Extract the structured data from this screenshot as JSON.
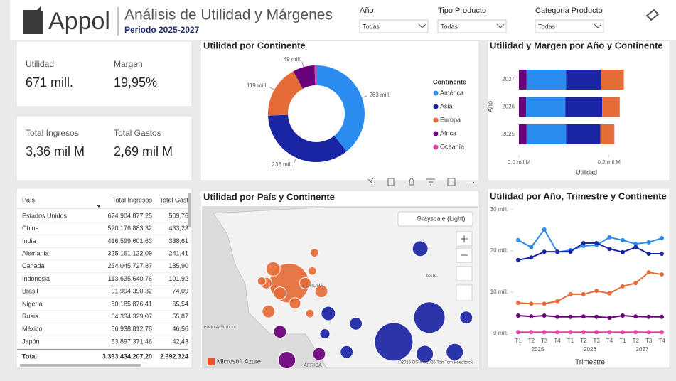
{
  "header": {
    "logo": "Appol",
    "title": "Análisis de Utilidad y Márgenes",
    "subtitle": "Periodo 2025-2027"
  },
  "filters": [
    {
      "label": "Año",
      "value": "Todas"
    },
    {
      "label": "Tipo Producto",
      "value": "Todas"
    },
    {
      "label": "Categoria Producto",
      "value": "Todas"
    }
  ],
  "kpis": [
    {
      "label": "Utilidad",
      "value": "671 mill."
    },
    {
      "label": "Margen",
      "value": "19,95%"
    },
    {
      "label": "Total Ingresos",
      "value": "3,36 mil M"
    },
    {
      "label": "Total Gastos",
      "value": "2,69 mil M"
    }
  ],
  "table": {
    "columns": [
      "País",
      "Total Ingresos",
      "Total Gast"
    ],
    "rows": [
      [
        "Estados Unidos",
        "674.904.877,25",
        "509,76"
      ],
      [
        "China",
        "520.176.883,32",
        "433,23"
      ],
      [
        "India",
        "416.599.601,63",
        "338,61"
      ],
      [
        "Alemania",
        "325.161.122,09",
        "241,41"
      ],
      [
        "Canadá",
        "234.045.727,87",
        "185,90"
      ],
      [
        "Indonesia",
        "113.635.640,76",
        "101,92"
      ],
      [
        "Brasil",
        "91.994.390,32",
        "74,09"
      ],
      [
        "Nigeria",
        "80.185.876,41",
        "65,54"
      ],
      [
        "Rusia",
        "64.334.329,07",
        "55,87"
      ],
      [
        "México",
        "56.938.812,78",
        "46,56"
      ],
      [
        "Japón",
        "53.897.371,46",
        "42,43"
      ]
    ],
    "total": [
      "Total",
      "3.363.434.207,20",
      "2.692.324"
    ]
  },
  "chart_data": [
    {
      "type": "donut",
      "title": "Utilidad por Continente",
      "legend_title": "Continente",
      "categories": [
        "América",
        "Asia",
        "Europa",
        "África",
        "Oceanía"
      ],
      "values": [
        263,
        236,
        119,
        49,
        4
      ],
      "value_labels": [
        "263 mill.",
        "236 mill.",
        "119 mill.",
        "49 mill.",
        null
      ],
      "colors": [
        "#2b8cf0",
        "#1a25a3",
        "#e66c37",
        "#6b007b",
        "#e044a7"
      ]
    },
    {
      "type": "stacked_bar_h",
      "title": "Utilidad y Margen por Año y Continente",
      "ylabel": "Año",
      "xlabel": "Utilidad",
      "categories": [
        "2027",
        "2026",
        "2025"
      ],
      "series": [
        {
          "color": "#6b007b",
          "values": [
            0.017,
            0.016,
            0.017
          ]
        },
        {
          "color": "#2b8cf0",
          "values": [
            0.088,
            0.087,
            0.088
          ]
        },
        {
          "color": "#1a25a3",
          "values": [
            0.077,
            0.082,
            0.076
          ]
        },
        {
          "color": "#e66c37",
          "values": [
            0.05,
            0.038,
            0.03
          ]
        },
        {
          "color": "#e044a7",
          "values": [
            0.001,
            0.001,
            0.001
          ]
        }
      ],
      "xlim": [
        0,
        0.27
      ],
      "xticks": [
        {
          "value": 0,
          "label": "0.0 mil M"
        },
        {
          "value": 0.2,
          "label": "0.2 mil M"
        }
      ]
    },
    {
      "type": "bubble_map",
      "title": "Utilidad por País y Continente",
      "style": "Grayscale (Light)",
      "region_labels": [
        "EUROPA",
        "ASIA",
        "ÁFRICA",
        "Océano Atlántico"
      ],
      "attribution": "Microsoft Azure",
      "copyright": "©2025 OSM ©2025 TomTom Feedback",
      "lonlim": [
        -30,
        90
      ],
      "latlim": [
        0,
        80
      ],
      "points": [
        {
          "lon": 8,
          "lat": 42,
          "value": 31,
          "color": "#e66c37"
        },
        {
          "lon": -2,
          "lat": 42,
          "value": 2.6,
          "color": "#e66c37"
        },
        {
          "lon": 1,
          "lat": 49,
          "value": 4,
          "color": "#e66c37"
        },
        {
          "lon": 4,
          "lat": 37,
          "value": 3.2,
          "color": "#e66c37"
        },
        {
          "lon": 10.5,
          "lat": 32,
          "value": 2.6,
          "color": "#e66c37"
        },
        {
          "lon": 22,
          "lat": 38,
          "value": 3.2,
          "color": "#e66c37"
        },
        {
          "lon": -1,
          "lat": 28,
          "value": 3.2,
          "color": "#e66c37"
        },
        {
          "lon": 18,
          "lat": 48,
          "value": 1.4,
          "color": "#e66c37"
        },
        {
          "lon": 17,
          "lat": 27,
          "value": 1.4,
          "color": "#e66c37"
        },
        {
          "lon": -4,
          "lat": 43,
          "value": 1.4,
          "color": "#e66c37"
        },
        {
          "lon": 15,
          "lat": 42,
          "value": 2.6,
          "color": "#e66c37"
        },
        {
          "lon": 19,
          "lat": 57,
          "value": 1.4,
          "color": "#e66c37"
        },
        {
          "lon": 65,
          "lat": 59,
          "value": 4.8,
          "color": "#1a25a3"
        },
        {
          "lon": 69,
          "lat": 25,
          "value": 19.4,
          "color": "#1a25a3"
        },
        {
          "lon": 53.5,
          "lat": 13,
          "value": 29,
          "color": "#1a25a3"
        },
        {
          "lon": 25,
          "lat": 27,
          "value": 4,
          "color": "#1a25a3"
        },
        {
          "lon": 37,
          "lat": 22,
          "value": 3.2,
          "color": "#1a25a3"
        },
        {
          "lon": 67,
          "lat": 7,
          "value": 5.8,
          "color": "#1a25a3"
        },
        {
          "lon": 80,
          "lat": 8,
          "value": 5.8,
          "color": "#1a25a3"
        },
        {
          "lon": 85,
          "lat": 25,
          "value": 3.2,
          "color": "#1a25a3"
        },
        {
          "lon": 33,
          "lat": 8,
          "value": 3.2,
          "color": "#1a25a3"
        },
        {
          "lon": 23.5,
          "lat": 17,
          "value": 2,
          "color": "#1a25a3"
        },
        {
          "lon": 4,
          "lat": 18,
          "value": 3.2,
          "color": "#6b007b"
        },
        {
          "lon": 7,
          "lat": 4,
          "value": 5.8,
          "color": "#6b007b"
        },
        {
          "lon": 21,
          "lat": 7,
          "value": 3.2,
          "color": "#6b007b"
        }
      ]
    },
    {
      "type": "line",
      "title": "Utilidad por Año, Trimestre y Continente",
      "xlabel": "Trimestre",
      "categories": [
        "T1",
        "T2",
        "T3",
        "T4",
        "T1",
        "T2",
        "T3",
        "T4",
        "T1",
        "T2",
        "T3",
        "T4"
      ],
      "groups": [
        "2025",
        "2026",
        "2027"
      ],
      "ylim": [
        0,
        30
      ],
      "yticks": [
        {
          "value": 0,
          "label": "0 mill."
        },
        {
          "value": 10,
          "label": "10 mill."
        },
        {
          "value": 20,
          "label": "20 mill."
        },
        {
          "value": 30,
          "label": "30 mill."
        }
      ],
      "series": [
        {
          "color": "#2b8cf0",
          "values": [
            22.6,
            20.9,
            25.2,
            19.7,
            20.2,
            21.2,
            21.4,
            23.3,
            22.6,
            21.7,
            22.1,
            23.1
          ]
        },
        {
          "color": "#1a25a3",
          "values": [
            17.8,
            18.4,
            19.8,
            19.8,
            19.8,
            21.9,
            21.9,
            20.5,
            19.7,
            20.9,
            19.3,
            19.3
          ]
        },
        {
          "color": "#e66c37",
          "values": [
            7.4,
            7.2,
            7.2,
            7.8,
            9.5,
            9.5,
            10.3,
            9.7,
            11.4,
            12.2,
            14.8,
            14.3
          ]
        },
        {
          "color": "#6b007b",
          "values": [
            4.3,
            4.1,
            4.3,
            4,
            4,
            4.1,
            4,
            3.8,
            4.3,
            4.1,
            4,
            4
          ]
        },
        {
          "color": "#e044a7",
          "values": [
            0.3,
            0.3,
            0.3,
            0.3,
            0.3,
            0.3,
            0.3,
            0.3,
            0.3,
            0.3,
            0.3,
            0.3
          ]
        }
      ]
    }
  ]
}
